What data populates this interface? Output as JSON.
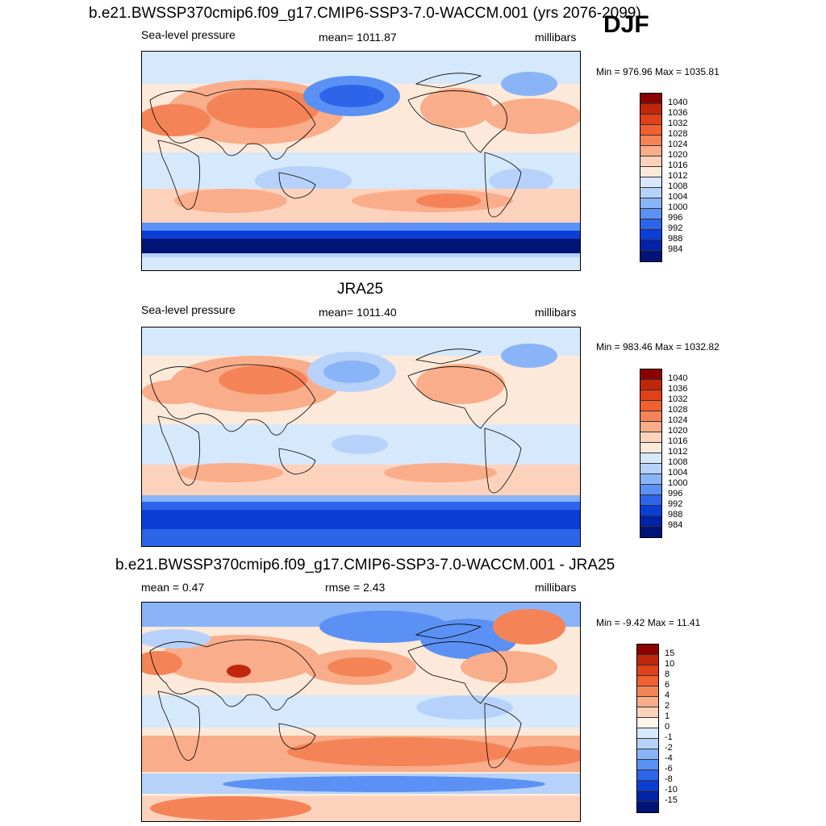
{
  "season": "DJF",
  "panels": [
    {
      "title": "b.e21.BWSSP370cmip6.f09_g17.CMIP6-SSP3-7.0-WACCM.001 (yrs 2076-2099)",
      "left": "Sea-level pressure",
      "center": "mean= 1011.87",
      "right": "millibars",
      "minmax": "Min = 976.96 Max = 1035.81",
      "colorbar_labels": [
        "1040",
        "1036",
        "1032",
        "1028",
        "1024",
        "1020",
        "1016",
        "1012",
        "1008",
        "1004",
        "1000",
        "996",
        "992",
        "988",
        "984"
      ],
      "colorbar_colors": [
        "#8b0000",
        "#c0260a",
        "#e0401a",
        "#f06030",
        "#f48458",
        "#f9ad8a",
        "#fcd2bc",
        "#fde9d9",
        "#d6e8fb",
        "#b7d2fa",
        "#8ab4f8",
        "#5b91f4",
        "#2d65ea",
        "#0a3ed6",
        "#0023a8",
        "#001478"
      ],
      "map": {
        "land_lines": true,
        "bands": [
          "#fde9d9",
          "#f9ad8a",
          "#d6e8fb",
          "#fcd2bc",
          "#f48458",
          "#fcd2bc",
          "#0a3ed6",
          "#001478"
        ]
      }
    },
    {
      "title": "JRA25",
      "left": "Sea-level pressure",
      "center": "mean= 1011.40",
      "right": "millibars",
      "minmax": "Min = 983.46 Max = 1032.82",
      "colorbar_labels": [
        "1040",
        "1036",
        "1032",
        "1028",
        "1024",
        "1020",
        "1016",
        "1012",
        "1008",
        "1004",
        "1000",
        "996",
        "992",
        "988",
        "984"
      ],
      "colorbar_colors": [
        "#8b0000",
        "#c0260a",
        "#e0401a",
        "#f06030",
        "#f48458",
        "#f9ad8a",
        "#fcd2bc",
        "#fde9d9",
        "#d6e8fb",
        "#b7d2fa",
        "#8ab4f8",
        "#5b91f4",
        "#2d65ea",
        "#0a3ed6",
        "#0023a8",
        "#001478"
      ]
    },
    {
      "title": "b.e21.BWSSP370cmip6.f09_g17.CMIP6-SSP3-7.0-WACCM.001 - JRA25",
      "left": "mean =   0.47",
      "center": "rmse =   2.43",
      "right": "millibars",
      "minmax": "Min =  -9.42 Max =  11.41",
      "colorbar_labels": [
        "15",
        "10",
        "8",
        "6",
        "4",
        "2",
        "1",
        "0",
        "-1",
        "-2",
        "-4",
        "-6",
        "-8",
        "-10",
        "-15"
      ],
      "colorbar_colors": [
        "#8b0000",
        "#c0260a",
        "#e0401a",
        "#f06030",
        "#f48458",
        "#f9ad8a",
        "#fcd2bc",
        "#fdf4ec",
        "#d6e8fb",
        "#b7d2fa",
        "#8ab4f8",
        "#5b91f4",
        "#2d65ea",
        "#0a3ed6",
        "#0023a8",
        "#001478"
      ]
    }
  ]
}
